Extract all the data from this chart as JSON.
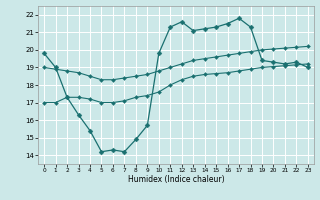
{
  "title": "",
  "xlabel": "Humidex (Indice chaleur)",
  "bg_color": "#cce8e8",
  "grid_color": "#ffffff",
  "line_color": "#1a7070",
  "xlim": [
    -0.5,
    23.5
  ],
  "ylim": [
    13.5,
    22.5
  ],
  "yticks": [
    14,
    15,
    16,
    17,
    18,
    19,
    20,
    21,
    22
  ],
  "xticks": [
    0,
    1,
    2,
    3,
    4,
    5,
    6,
    7,
    8,
    9,
    10,
    11,
    12,
    13,
    14,
    15,
    16,
    17,
    18,
    19,
    20,
    21,
    22,
    23
  ],
  "series": [
    {
      "x": [
        0,
        1,
        2,
        3,
        4,
        5,
        6,
        7,
        8,
        9,
        10,
        11,
        12,
        13,
        14,
        15,
        16,
        17,
        18,
        19,
        20,
        21,
        22,
        23
      ],
      "y": [
        19.8,
        19.0,
        17.3,
        16.3,
        15.4,
        14.2,
        14.3,
        14.2,
        14.9,
        15.7,
        19.8,
        21.3,
        21.6,
        21.1,
        21.2,
        21.3,
        21.5,
        21.8,
        21.3,
        19.4,
        19.3,
        19.2,
        19.3,
        19.0
      ],
      "marker": "D",
      "markersize": 2.5,
      "linewidth": 0.9
    },
    {
      "x": [
        0,
        1,
        2,
        3,
        4,
        5,
        6,
        7,
        8,
        9,
        10,
        11,
        12,
        13,
        14,
        15,
        16,
        17,
        18,
        19,
        20,
        21,
        22,
        23
      ],
      "y": [
        19.0,
        18.9,
        18.8,
        18.7,
        18.5,
        18.3,
        18.3,
        18.4,
        18.5,
        18.6,
        18.8,
        19.0,
        19.2,
        19.4,
        19.5,
        19.6,
        19.7,
        19.8,
        19.9,
        20.0,
        20.05,
        20.1,
        20.15,
        20.2
      ],
      "marker": "D",
      "markersize": 2.0,
      "linewidth": 0.8
    },
    {
      "x": [
        0,
        1,
        2,
        3,
        4,
        5,
        6,
        7,
        8,
        9,
        10,
        11,
        12,
        13,
        14,
        15,
        16,
        17,
        18,
        19,
        20,
        21,
        22,
        23
      ],
      "y": [
        17.0,
        17.0,
        17.3,
        17.3,
        17.2,
        17.0,
        17.0,
        17.1,
        17.3,
        17.4,
        17.6,
        18.0,
        18.3,
        18.5,
        18.6,
        18.65,
        18.7,
        18.8,
        18.9,
        19.0,
        19.05,
        19.1,
        19.15,
        19.2
      ],
      "marker": "D",
      "markersize": 2.0,
      "linewidth": 0.8
    }
  ]
}
